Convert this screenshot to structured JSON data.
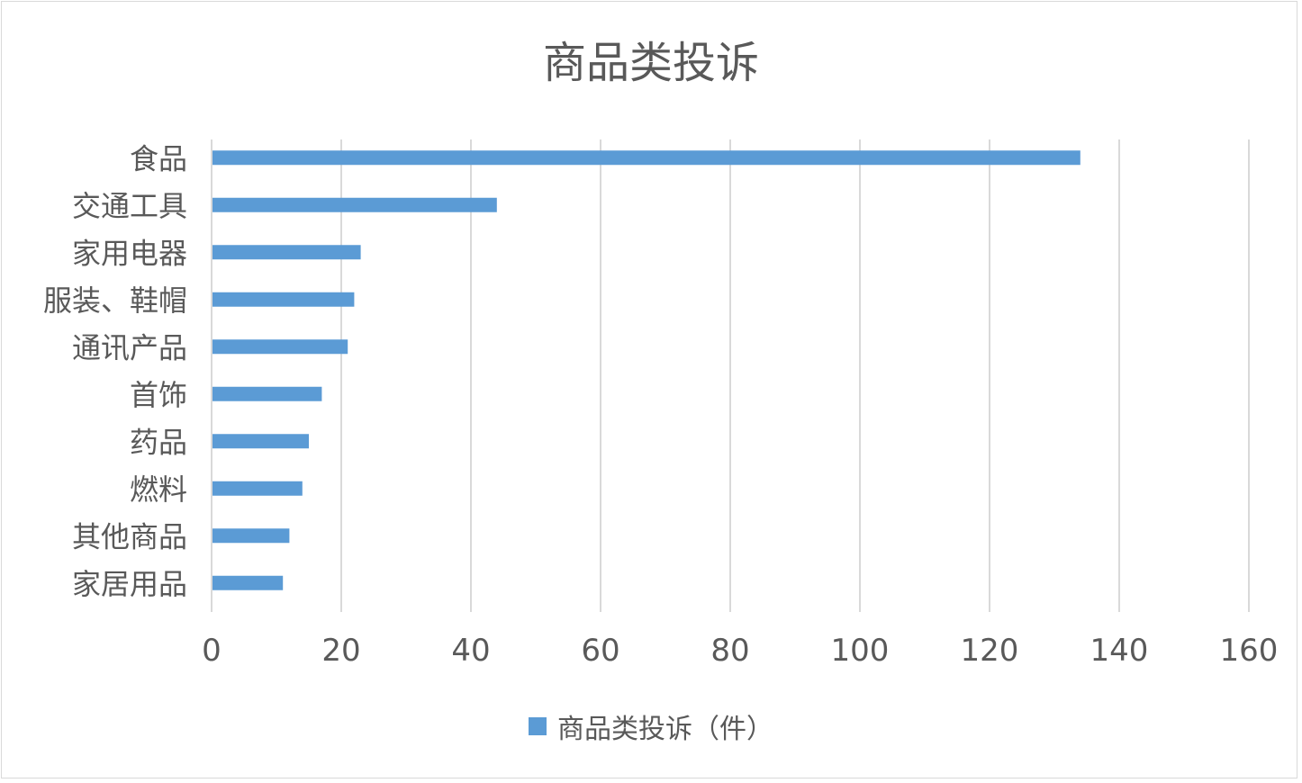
{
  "chart_data": {
    "type": "bar",
    "orientation": "horizontal",
    "title": "商品类投诉",
    "categories": [
      "食品",
      "交通工具",
      "家用电器",
      "服装、鞋帽",
      "通讯产品",
      "首饰",
      "药品",
      "燃料",
      "其他商品",
      "家居用品"
    ],
    "series": [
      {
        "name": "商品类投诉（件）",
        "values": [
          134,
          44,
          23,
          22,
          21,
          17,
          15,
          14,
          12,
          11
        ],
        "color": "#5b9bd5"
      }
    ],
    "xlim": [
      0,
      160
    ],
    "xticks": [
      0,
      20,
      40,
      60,
      80,
      100,
      120,
      140,
      160
    ],
    "grid": true,
    "legend": "bottom"
  }
}
